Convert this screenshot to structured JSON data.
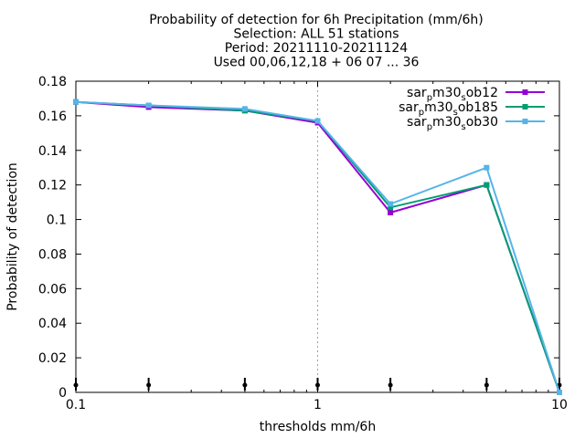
{
  "chart_data": {
    "type": "line",
    "title_lines": [
      "Probability of detection  for 6h Precipitation (mm/6h)",
      "Selection: ALL      51 stations",
      "Period: 20211110-20211124",
      "Used 00,06,12,18 + 06 07 ... 36"
    ],
    "xlabel": "thresholds mm/6h",
    "ylabel": "Probability of detection",
    "x_scale": "log",
    "xlim": [
      0.1,
      10
    ],
    "ylim": [
      0,
      0.18
    ],
    "x_ticks": [
      0.1,
      1,
      10
    ],
    "x_tick_labels": [
      "0.1",
      "1",
      "10"
    ],
    "y_ticks": [
      0,
      0.02,
      0.04,
      0.06,
      0.08,
      0.1,
      0.12,
      0.14,
      0.16,
      0.18
    ],
    "y_tick_labels": [
      "0",
      "0.02",
      "0.04",
      "0.06",
      "0.08",
      "0.1",
      "0.12",
      "0.14",
      "0.16",
      "0.18"
    ],
    "grid": "major x gridlines dashed",
    "legend_position": "top-right",
    "x": [
      0.1,
      0.2,
      0.5,
      1,
      2,
      5,
      10
    ],
    "series": [
      {
        "name_parts": [
          "sar",
          "p",
          "m30",
          "s",
          "ob12"
        ],
        "color": "#9400d3",
        "values": [
          0.168,
          0.165,
          0.163,
          0.156,
          0.104,
          0.12,
          0.0
        ]
      },
      {
        "name_parts": [
          "sar",
          "p",
          "m30",
          "s",
          "ob185"
        ],
        "color": "#009e73",
        "values": [
          0.168,
          0.166,
          0.163,
          0.157,
          0.107,
          0.12,
          0.0
        ]
      },
      {
        "name_parts": [
          "sar",
          "p",
          "m30",
          "s",
          "ob30"
        ],
        "color": "#56b4e9",
        "values": [
          0.168,
          0.166,
          0.164,
          0.157,
          0.109,
          0.13,
          0.0
        ]
      }
    ],
    "observation_markers_x": [
      0.1,
      0.2,
      0.5,
      1,
      2,
      5,
      10
    ]
  }
}
